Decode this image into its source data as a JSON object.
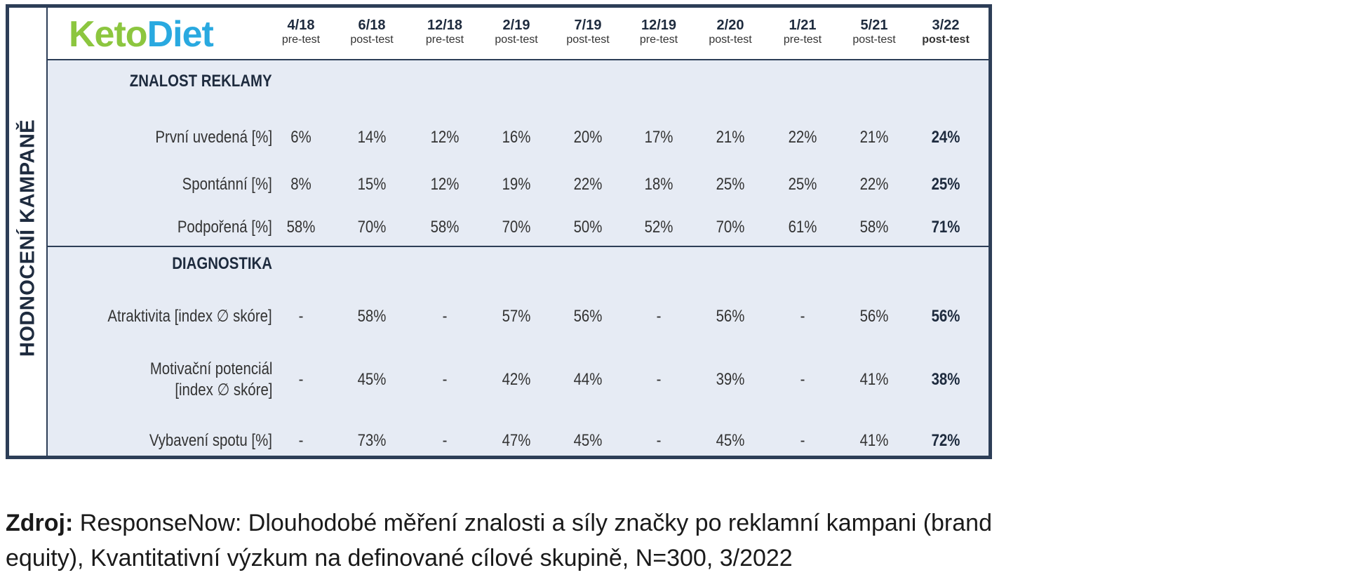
{
  "brand": {
    "part1": "Keto",
    "part2": "Diet",
    "colors": {
      "keto": "#8cc63f",
      "diet": "#29a9e0"
    }
  },
  "side_label": "HODNOCENÍ KAMPANĚ",
  "columns": [
    {
      "date": "4/18",
      "phase": "pre-test"
    },
    {
      "date": "6/18",
      "phase": "post-test"
    },
    {
      "date": "12/18",
      "phase": "pre-test"
    },
    {
      "date": "2/19",
      "phase": "post-test"
    },
    {
      "date": "7/19",
      "phase": "post-test"
    },
    {
      "date": "12/19",
      "phase": "pre-test"
    },
    {
      "date": "2/20",
      "phase": "post-test"
    },
    {
      "date": "1/21",
      "phase": "pre-test"
    },
    {
      "date": "5/21",
      "phase": "post-test"
    },
    {
      "date": "3/22",
      "phase": "post-test"
    }
  ],
  "sections": [
    {
      "title": "ZNALOST REKLAMY",
      "rows": [
        {
          "label": [
            "První uvedená [%]"
          ],
          "values": [
            "6%",
            "14%",
            "12%",
            "16%",
            "20%",
            "17%",
            "21%",
            "22%",
            "21%",
            "24%"
          ]
        },
        {
          "label": [
            "Spontánní [%]"
          ],
          "values": [
            "8%",
            "15%",
            "12%",
            "19%",
            "22%",
            "18%",
            "25%",
            "25%",
            "22%",
            "25%"
          ]
        },
        {
          "label": [
            "Podpořená [%]"
          ],
          "values": [
            "58%",
            "70%",
            "58%",
            "70%",
            "50%",
            "52%",
            "70%",
            "61%",
            "58%",
            "71%"
          ]
        }
      ]
    },
    {
      "title": "DIAGNOSTIKA",
      "rows": [
        {
          "label": [
            "Atraktivita [index ∅ skóre]"
          ],
          "values": [
            "-",
            "58%",
            "-",
            "57%",
            "56%",
            "-",
            "56%",
            "-",
            "56%",
            "56%"
          ]
        },
        {
          "label": [
            "Motivační potenciál",
            "[index ∅ skóre]"
          ],
          "values": [
            "-",
            "45%",
            "-",
            "42%",
            "44%",
            "-",
            "39%",
            "-",
            "41%",
            "38%"
          ]
        },
        {
          "label": [
            "Vybavení spotu [%]"
          ],
          "values": [
            "-",
            "73%",
            "-",
            "47%",
            "45%",
            "-",
            "45%",
            "-",
            "41%",
            "72%"
          ]
        }
      ]
    }
  ],
  "source": {
    "label": "Zdroj:",
    "line1": "ResponseNow: Dlouhodobé měření znalosti a síly značky po reklamní kampani (brand",
    "line2": "equity), Kvantitativní výzkum na definované cílové skupině, N=300, 3/2022"
  }
}
